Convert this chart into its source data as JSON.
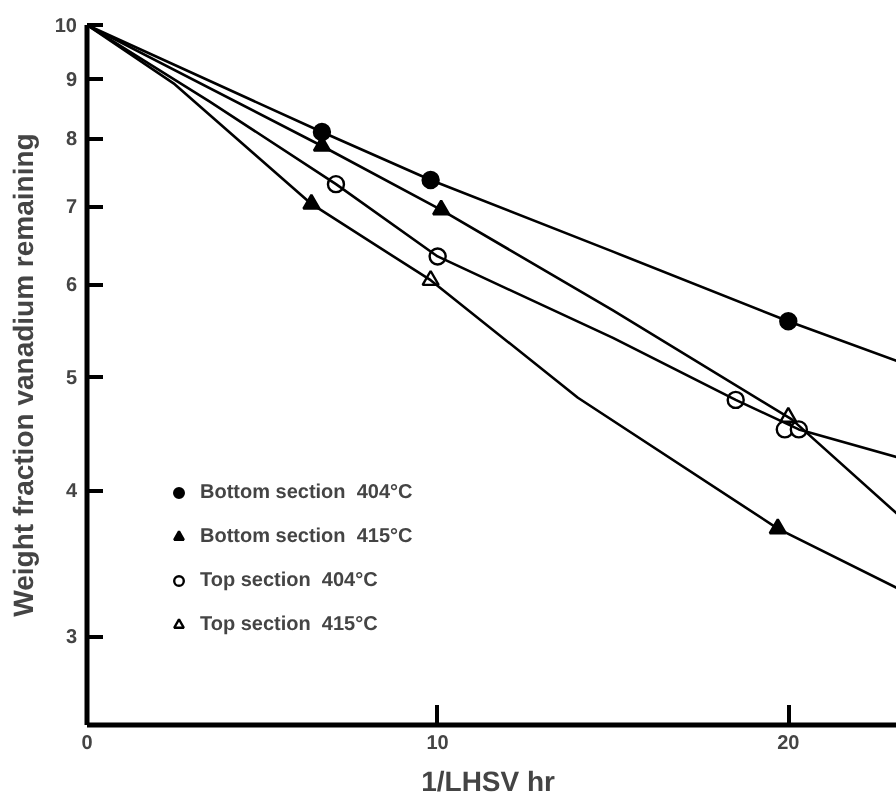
{
  "chart_data": {
    "type": "scatter",
    "xlabel": "1/LHSV  hr",
    "ylabel": "Weight fraction vanadium remaining",
    "log": "y",
    "xlim": [
      0,
      23.1
    ],
    "ylim": [
      2.52,
      10
    ],
    "xticks": [
      0,
      10,
      20
    ],
    "yticks": [
      3,
      4,
      5,
      6,
      7,
      8,
      9,
      10
    ],
    "grid": false,
    "legend": "bottom left",
    "series": [
      {
        "name": "Bottom section  404°C",
        "color": "#000000",
        "marker": "circle",
        "x": [
          6.7,
          9.8,
          20.0
        ],
        "values": [
          8.1,
          7.37,
          5.58
        ]
      },
      {
        "name": "Bottom section  415°C",
        "color": "#000000",
        "marker": "triangle",
        "x": [
          6.7,
          6.4,
          10.1,
          19.7
        ],
        "values": [
          7.88,
          7.03,
          6.95,
          3.71
        ]
      },
      {
        "name": "Top section  404°C",
        "color": "#000000",
        "marker": "circle_open",
        "x": [
          7.1,
          10.0,
          18.5,
          19.9,
          20.3
        ],
        "values": [
          7.31,
          6.34,
          4.78,
          4.51,
          4.51
        ]
      },
      {
        "name": "Top section  415°C",
        "color": "#000000",
        "marker": "triangle_open",
        "x": [
          9.8,
          20.0
        ],
        "values": [
          6.05,
          4.62
        ]
      },
      {
        "type": "line",
        "color": "#000000",
        "marker": "none",
        "x": [
          0,
          6.7,
          9.8,
          15,
          20,
          23.1
        ],
        "values": [
          10,
          8.1,
          7.37,
          6.4,
          5.58,
          5.16
        ]
      },
      {
        "type": "line",
        "color": "#000000",
        "marker": "none",
        "x": [
          0,
          6.7,
          10.1,
          15,
          20.1,
          23.1
        ],
        "values": [
          10,
          7.88,
          6.95,
          5.7,
          4.6,
          3.82
        ]
      },
      {
        "type": "line",
        "color": "#000000",
        "marker": "none",
        "x": [
          0,
          3.5,
          7.1,
          10,
          15,
          18.5,
          20.3,
          23.1
        ],
        "values": [
          10,
          8.6,
          7.31,
          6.34,
          5.4,
          4.78,
          4.51,
          4.27
        ]
      },
      {
        "type": "line",
        "color": "#000000",
        "marker": "none",
        "x": [
          0,
          2.5,
          6.4,
          9.8,
          14,
          19.7,
          23.1
        ],
        "values": [
          10,
          8.9,
          7.03,
          6.05,
          4.8,
          3.71,
          3.3
        ]
      }
    ]
  }
}
